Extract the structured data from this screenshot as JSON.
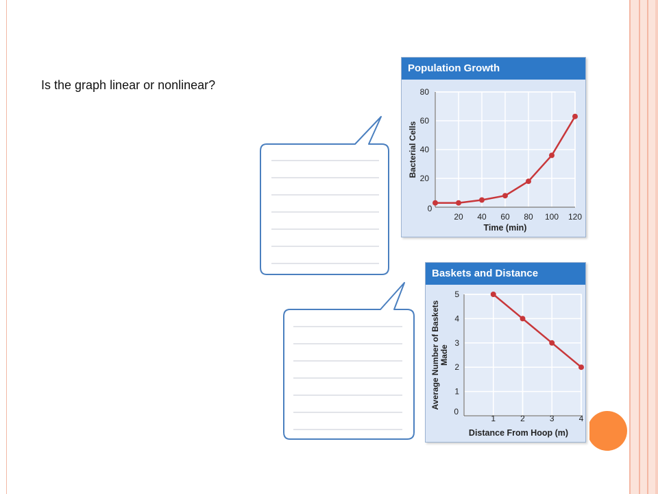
{
  "slide": {
    "question": "Is the graph linear or nonlinear?",
    "accent_color": "#fb8a3c"
  },
  "chart_data": [
    {
      "type": "line",
      "title": "Population Growth",
      "xlabel": "Time (min)",
      "ylabel": "Bacterial Cells",
      "x_ticks": [
        "0",
        "20",
        "40",
        "60",
        "80",
        "100",
        "120"
      ],
      "y_ticks": [
        "20",
        "40",
        "60",
        "80"
      ],
      "xlim": [
        0,
        120
      ],
      "ylim": [
        0,
        80
      ],
      "grid": true,
      "series": [
        {
          "x": [
            0,
            20,
            40,
            60,
            80,
            100,
            120
          ],
          "y": [
            3,
            3,
            5,
            8,
            18,
            36,
            63
          ],
          "color": "#c8373a"
        }
      ]
    },
    {
      "type": "line",
      "title": "Baskets and Distance",
      "xlabel": "Distance From Hoop (m)",
      "ylabel": "Average Number of Baskets Made",
      "x_ticks": [
        "1",
        "2",
        "3",
        "4"
      ],
      "y_ticks": [
        "0",
        "1",
        "2",
        "3",
        "4",
        "5"
      ],
      "xlim": [
        0,
        4
      ],
      "ylim": [
        0,
        5
      ],
      "grid": true,
      "series": [
        {
          "x": [
            1,
            2,
            3,
            4
          ],
          "y": [
            5,
            4,
            3,
            2
          ],
          "color": "#c8373a"
        }
      ]
    }
  ]
}
